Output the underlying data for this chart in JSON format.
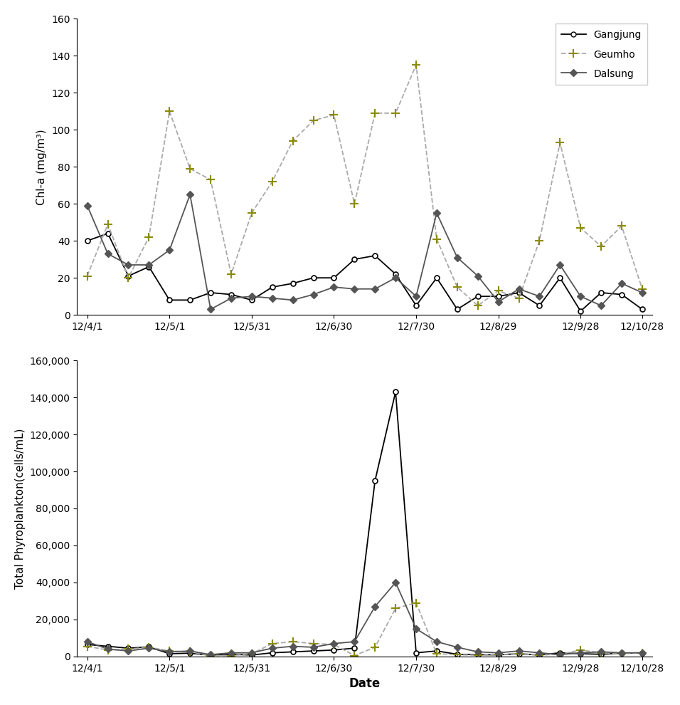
{
  "gangjung_chl": [
    40,
    44,
    21,
    26,
    8,
    8,
    12,
    11,
    8,
    15,
    17,
    20,
    20,
    30,
    32,
    22,
    5,
    20,
    3,
    10,
    10,
    12,
    5,
    20,
    2,
    12,
    11,
    3
  ],
  "geumho_chl": [
    21,
    49,
    20,
    42,
    110,
    79,
    73,
    22,
    55,
    72,
    94,
    105,
    108,
    60,
    109,
    109,
    135,
    41,
    15,
    5,
    13,
    9,
    40,
    93,
    47,
    37,
    48,
    14
  ],
  "dalsung_chl": [
    59,
    33,
    27,
    27,
    35,
    65,
    3,
    9,
    10,
    9,
    8,
    11,
    15,
    14,
    14,
    20,
    10,
    55,
    31,
    21,
    7,
    14,
    10,
    27,
    10,
    5,
    17,
    12
  ],
  "gangjung_phy": [
    6500,
    5500,
    4500,
    5200,
    1500,
    1800,
    700,
    1200,
    800,
    2000,
    2500,
    3000,
    3500,
    4500,
    95000,
    143000,
    2000,
    3000,
    1200,
    1000,
    900,
    1500,
    800,
    2000,
    1500,
    1200,
    1800,
    2000
  ],
  "geumho_phy": [
    5500,
    3500,
    4000,
    5000,
    3000,
    2500,
    500,
    500,
    1500,
    7000,
    8000,
    7000,
    6500,
    500,
    5000,
    26000,
    29000,
    1500,
    1000,
    700,
    1000,
    1500,
    800,
    1200,
    3500,
    2000,
    1500,
    2000
  ],
  "dalsung_phy": [
    8000,
    4000,
    3000,
    4500,
    2500,
    3000,
    1000,
    2000,
    2000,
    4500,
    5500,
    5000,
    7000,
    8000,
    27000,
    40000,
    15000,
    8000,
    5000,
    2500,
    2000,
    3000,
    2000,
    1000,
    2000,
    2500,
    2000,
    2000
  ],
  "x_tick_positions": [
    0,
    4,
    8,
    12,
    16,
    20,
    24,
    27
  ],
  "x_tick_labels": [
    "12/4/1",
    "12/5/1",
    "12/5/31",
    "12/6/30",
    "12/7/30",
    "12/8/29",
    "12/9/28",
    "12/10/28"
  ],
  "chl_ylim": [
    0,
    160
  ],
  "chl_yticks": [
    0,
    20,
    40,
    60,
    80,
    100,
    120,
    140,
    160
  ],
  "phy_ylim": [
    0,
    160000
  ],
  "phy_yticks": [
    0,
    20000,
    40000,
    60000,
    80000,
    100000,
    120000,
    140000,
    160000
  ],
  "gangjung_color": "#000000",
  "geumho_line_color": "#aaaaaa",
  "geumho_marker_color": "#8B8B00",
  "dalsung_color": "#555555",
  "ylabel1": "Chl-a (mg/m³)",
  "ylabel2": "Total Phyroplankton(cells/mL)",
  "xlabel": "Date",
  "legend_labels": [
    "Gangjung",
    "Geumho",
    "Dalsung"
  ]
}
